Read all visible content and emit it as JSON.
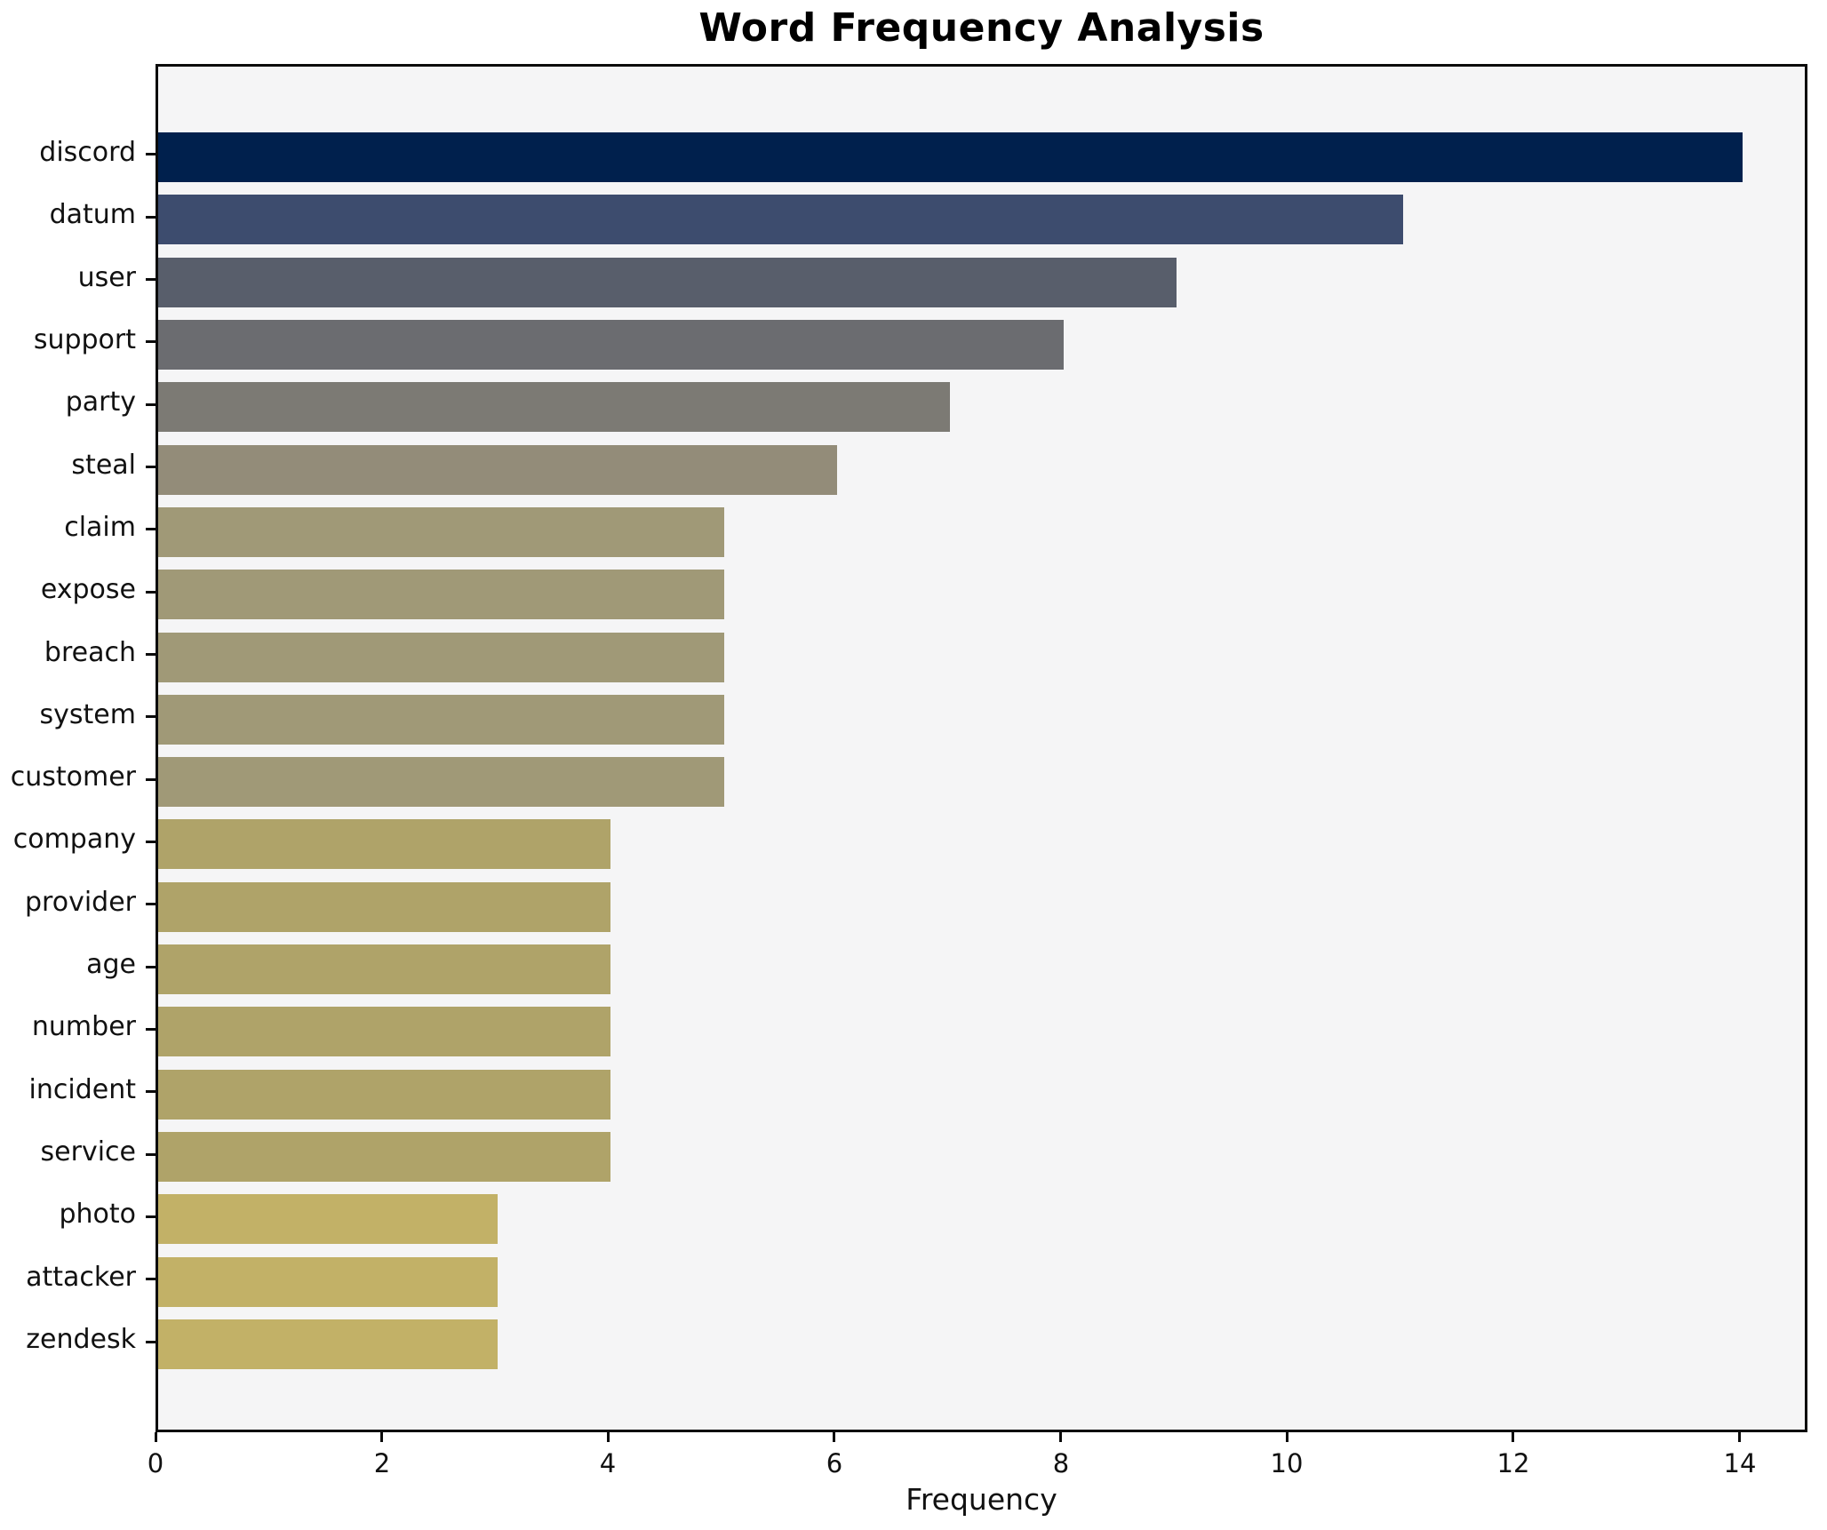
{
  "chart_data": {
    "type": "bar",
    "orientation": "horizontal",
    "title": "Word Frequency Analysis",
    "xlabel": "Frequency",
    "ylabel": "",
    "categories": [
      "discord",
      "datum",
      "user",
      "support",
      "party",
      "steal",
      "claim",
      "expose",
      "breach",
      "system",
      "customer",
      "company",
      "provider",
      "age",
      "number",
      "incident",
      "service",
      "photo",
      "attacker",
      "zendesk"
    ],
    "values": [
      14,
      11,
      9,
      8,
      7,
      6,
      5,
      5,
      5,
      5,
      5,
      4,
      4,
      4,
      4,
      4,
      4,
      3,
      3,
      3
    ],
    "bar_colors": [
      "#00204d",
      "#3d4c6e",
      "#585e6b",
      "#6b6c70",
      "#7c7a74",
      "#938c79",
      "#a09977",
      "#a09977",
      "#a09977",
      "#a09977",
      "#a09977",
      "#afa369",
      "#afa369",
      "#afa369",
      "#afa369",
      "#afa369",
      "#afa369",
      "#c2b167",
      "#c2b167",
      "#c2b167"
    ],
    "xticks": [
      0,
      2,
      4,
      6,
      8,
      10,
      12,
      14
    ],
    "xlim": [
      0,
      14.6
    ],
    "grid": false,
    "legend": false,
    "plot_background": "#f5f5f6",
    "figure_background": "#ffffff",
    "axis_color": "#0b0b0b",
    "colormap": "cividis"
  }
}
